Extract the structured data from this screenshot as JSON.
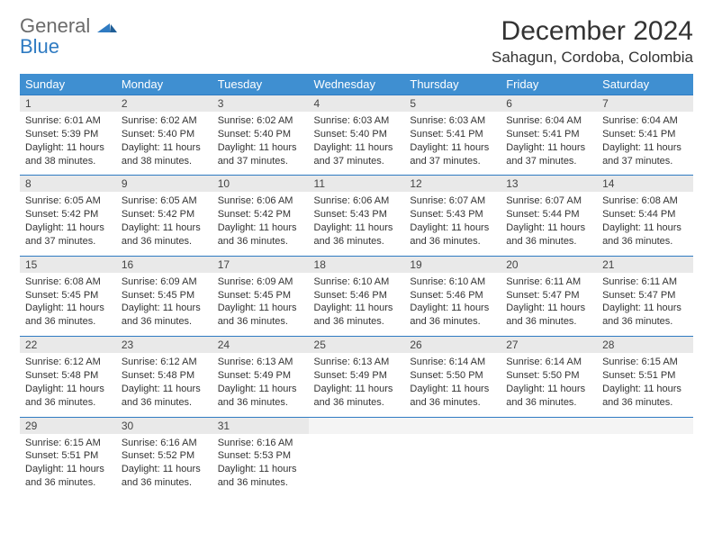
{
  "logo": {
    "general": "General",
    "blue": "Blue"
  },
  "title": "December 2024",
  "location": "Sahagun, Cordoba, Colombia",
  "colors": {
    "header_bg": "#3f8fd1",
    "header_text": "#ffffff",
    "rule": "#2f7bc2",
    "daynum_bg": "#e9e9e9",
    "logo_gray": "#6b6b6b",
    "logo_blue": "#2f7bc2"
  },
  "weekdays": [
    "Sunday",
    "Monday",
    "Tuesday",
    "Wednesday",
    "Thursday",
    "Friday",
    "Saturday"
  ],
  "weeks": [
    [
      {
        "n": "1",
        "sr": "6:01 AM",
        "ss": "5:39 PM",
        "dl": "11 hours and 38 minutes."
      },
      {
        "n": "2",
        "sr": "6:02 AM",
        "ss": "5:40 PM",
        "dl": "11 hours and 38 minutes."
      },
      {
        "n": "3",
        "sr": "6:02 AM",
        "ss": "5:40 PM",
        "dl": "11 hours and 37 minutes."
      },
      {
        "n": "4",
        "sr": "6:03 AM",
        "ss": "5:40 PM",
        "dl": "11 hours and 37 minutes."
      },
      {
        "n": "5",
        "sr": "6:03 AM",
        "ss": "5:41 PM",
        "dl": "11 hours and 37 minutes."
      },
      {
        "n": "6",
        "sr": "6:04 AM",
        "ss": "5:41 PM",
        "dl": "11 hours and 37 minutes."
      },
      {
        "n": "7",
        "sr": "6:04 AM",
        "ss": "5:41 PM",
        "dl": "11 hours and 37 minutes."
      }
    ],
    [
      {
        "n": "8",
        "sr": "6:05 AM",
        "ss": "5:42 PM",
        "dl": "11 hours and 37 minutes."
      },
      {
        "n": "9",
        "sr": "6:05 AM",
        "ss": "5:42 PM",
        "dl": "11 hours and 36 minutes."
      },
      {
        "n": "10",
        "sr": "6:06 AM",
        "ss": "5:42 PM",
        "dl": "11 hours and 36 minutes."
      },
      {
        "n": "11",
        "sr": "6:06 AM",
        "ss": "5:43 PM",
        "dl": "11 hours and 36 minutes."
      },
      {
        "n": "12",
        "sr": "6:07 AM",
        "ss": "5:43 PM",
        "dl": "11 hours and 36 minutes."
      },
      {
        "n": "13",
        "sr": "6:07 AM",
        "ss": "5:44 PM",
        "dl": "11 hours and 36 minutes."
      },
      {
        "n": "14",
        "sr": "6:08 AM",
        "ss": "5:44 PM",
        "dl": "11 hours and 36 minutes."
      }
    ],
    [
      {
        "n": "15",
        "sr": "6:08 AM",
        "ss": "5:45 PM",
        "dl": "11 hours and 36 minutes."
      },
      {
        "n": "16",
        "sr": "6:09 AM",
        "ss": "5:45 PM",
        "dl": "11 hours and 36 minutes."
      },
      {
        "n": "17",
        "sr": "6:09 AM",
        "ss": "5:45 PM",
        "dl": "11 hours and 36 minutes."
      },
      {
        "n": "18",
        "sr": "6:10 AM",
        "ss": "5:46 PM",
        "dl": "11 hours and 36 minutes."
      },
      {
        "n": "19",
        "sr": "6:10 AM",
        "ss": "5:46 PM",
        "dl": "11 hours and 36 minutes."
      },
      {
        "n": "20",
        "sr": "6:11 AM",
        "ss": "5:47 PM",
        "dl": "11 hours and 36 minutes."
      },
      {
        "n": "21",
        "sr": "6:11 AM",
        "ss": "5:47 PM",
        "dl": "11 hours and 36 minutes."
      }
    ],
    [
      {
        "n": "22",
        "sr": "6:12 AM",
        "ss": "5:48 PM",
        "dl": "11 hours and 36 minutes."
      },
      {
        "n": "23",
        "sr": "6:12 AM",
        "ss": "5:48 PM",
        "dl": "11 hours and 36 minutes."
      },
      {
        "n": "24",
        "sr": "6:13 AM",
        "ss": "5:49 PM",
        "dl": "11 hours and 36 minutes."
      },
      {
        "n": "25",
        "sr": "6:13 AM",
        "ss": "5:49 PM",
        "dl": "11 hours and 36 minutes."
      },
      {
        "n": "26",
        "sr": "6:14 AM",
        "ss": "5:50 PM",
        "dl": "11 hours and 36 minutes."
      },
      {
        "n": "27",
        "sr": "6:14 AM",
        "ss": "5:50 PM",
        "dl": "11 hours and 36 minutes."
      },
      {
        "n": "28",
        "sr": "6:15 AM",
        "ss": "5:51 PM",
        "dl": "11 hours and 36 minutes."
      }
    ],
    [
      {
        "n": "29",
        "sr": "6:15 AM",
        "ss": "5:51 PM",
        "dl": "11 hours and 36 minutes."
      },
      {
        "n": "30",
        "sr": "6:16 AM",
        "ss": "5:52 PM",
        "dl": "11 hours and 36 minutes."
      },
      {
        "n": "31",
        "sr": "6:16 AM",
        "ss": "5:53 PM",
        "dl": "11 hours and 36 minutes."
      },
      null,
      null,
      null,
      null
    ]
  ],
  "labels": {
    "sunrise": "Sunrise: ",
    "sunset": "Sunset: ",
    "daylight": "Daylight: "
  }
}
